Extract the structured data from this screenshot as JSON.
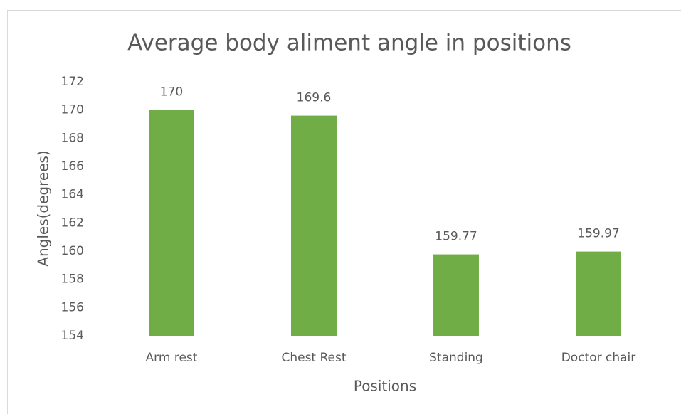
{
  "chart_data": {
    "type": "bar",
    "title": "Average body aliment angle in positions",
    "categories": [
      "Arm rest",
      "Chest Rest",
      "Standing",
      "Doctor chair"
    ],
    "values": [
      170,
      169.6,
      159.77,
      159.97
    ],
    "color": "#70ad47",
    "xlabel": "Positions",
    "ylabel": "Angles(degrees)",
    "ylim": [
      154,
      172
    ],
    "yticks": [
      154,
      156,
      158,
      160,
      162,
      164,
      166,
      168,
      170,
      172
    ],
    "grid": false
  }
}
